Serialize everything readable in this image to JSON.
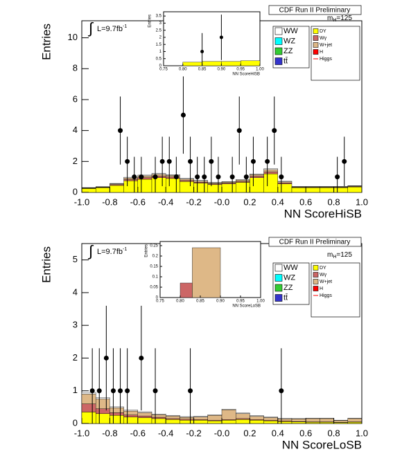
{
  "chart_data": [
    {
      "type": "histogram",
      "title": "CDF Run II Preliminary",
      "lumi_prefix": "∫",
      "lumi": "L=9.7fb",
      "lumi_sup": "-1",
      "mass_label": {
        "main": "m",
        "sub": "H",
        "rest": "=125"
      },
      "xlabel": "NN ScoreHiSB",
      "ylabel": "Entries",
      "xlim": [
        -1,
        1
      ],
      "ylim": [
        0,
        11.1
      ],
      "xticks": [
        {
          "value": -1,
          "label": "-1.0"
        },
        -0.8,
        -0.6,
        -0.4,
        -0.2,
        {
          "value": 0,
          "label": "-0.0"
        },
        0.2,
        0.4,
        0.6,
        0.8,
        {
          "value": 1,
          "label": "1.0"
        }
      ],
      "yticks": [
        0,
        2,
        4,
        6,
        8,
        10
      ],
      "bins": [
        -1,
        -0.9,
        -0.8,
        -0.7,
        -0.6,
        -0.5,
        -0.4,
        -0.3,
        -0.2,
        -0.1,
        0,
        0.1,
        0.2,
        0.3,
        0.4,
        0.5,
        0.6,
        0.7,
        0.8,
        0.9,
        1
      ],
      "series": [
        {
          "name": "DY",
          "color": "#ffff00",
          "values": [
            0.25,
            0.3,
            0.45,
            0.75,
            0.85,
            0.95,
            0.9,
            0.7,
            0.6,
            0.5,
            0.55,
            0.65,
            0.95,
            1.2,
            0.55,
            0.3,
            0.3,
            0.3,
            0.3,
            0.35
          ]
        },
        {
          "name": "Wγ",
          "color": "#cc6666",
          "values": [
            0.02,
            0.03,
            0.05,
            0.08,
            0.1,
            0.1,
            0.1,
            0.08,
            0.06,
            0.05,
            0.05,
            0.06,
            0.1,
            0.12,
            0.06,
            0.03,
            0.03,
            0.03,
            0.03,
            0.03
          ]
        },
        {
          "name": "W+jet",
          "color": "#deb887",
          "values": [
            0.02,
            0.02,
            0.05,
            0.1,
            0.12,
            0.12,
            0.1,
            0.08,
            0.07,
            0.06,
            0.07,
            0.08,
            0.1,
            0.15,
            0.07,
            0.03,
            0.03,
            0.03,
            0.03,
            0.03
          ]
        },
        {
          "name": "H",
          "color": "#ff0000"
        },
        {
          "name": "Higgs",
          "color": "#ff0000"
        },
        {
          "name": "WW",
          "color": "#ffffff",
          "values": [
            0.02,
            0.02,
            0.03,
            0.05,
            0.05,
            0.05,
            0.05,
            0.04,
            0.04,
            0.03,
            0.03,
            0.04,
            0.05,
            0.06,
            0.04,
            0.02,
            0.02,
            0.02,
            0.02,
            0.02
          ]
        },
        {
          "name": "WZ",
          "color": "#00ffff"
        },
        {
          "name": "ZZ",
          "color": "#33cc33"
        },
        {
          "name": "tt̄",
          "color": "#3333cc"
        }
      ],
      "data_points": {
        "x": [
          -0.725,
          -0.675,
          -0.625,
          -0.575,
          -0.475,
          -0.425,
          -0.375,
          -0.325,
          -0.275,
          -0.225,
          -0.175,
          -0.125,
          -0.075,
          -0.025,
          0.075,
          0.125,
          0.175,
          0.225,
          0.325,
          0.375,
          0.425,
          0.825,
          0.875
        ],
        "values": [
          4,
          2,
          1,
          1,
          1,
          2,
          2,
          1,
          5,
          2,
          1,
          1,
          2,
          1,
          1,
          4,
          1,
          2,
          2,
          4,
          1,
          1,
          2
        ],
        "errors": [
          2.2,
          1.6,
          1.3,
          1.3,
          1.3,
          1.6,
          1.6,
          1.3,
          2.5,
          1.6,
          1.3,
          1.3,
          1.6,
          1.3,
          1.3,
          2.2,
          1.3,
          1.6,
          1.6,
          2.2,
          1.3,
          1.3,
          1.6
        ]
      },
      "inset": {
        "xlabel": "NN ScoreHiSB",
        "ylabel": "Entries",
        "xlim": [
          0.75,
          1
        ],
        "ylim": [
          0,
          3.8
        ],
        "xticks": [
          0.75,
          {
            "value": 0.8,
            "label": "0.80"
          },
          0.85,
          {
            "value": 0.9,
            "label": "0.90"
          },
          0.95,
          {
            "value": 1,
            "label": "1.00"
          }
        ],
        "yticks": [
          0,
          0.5,
          1,
          1.5,
          2,
          2.5,
          3,
          3.5
        ],
        "bins": [
          0.75,
          0.8,
          0.85,
          0.9,
          0.95,
          1
        ],
        "series": [
          {
            "name": "DY",
            "color": "#ffff00",
            "values": [
              0,
              0.25,
              0.3,
              0.3,
              0.35
            ]
          }
        ],
        "data_points": {
          "x": [
            0.85,
            0.9
          ],
          "values": [
            1,
            2
          ],
          "errors": [
            1.3,
            1.6
          ]
        }
      }
    },
    {
      "type": "histogram",
      "title": "CDF Run II Preliminary",
      "lumi_prefix": "∫",
      "lumi": "L=9.7fb",
      "lumi_sup": "-1",
      "mass_label": {
        "main": "m",
        "sub": "H",
        "rest": "=125"
      },
      "xlabel": "NN ScoreLoSB",
      "ylabel": "Entries",
      "xlim": [
        -1,
        1
      ],
      "ylim": [
        0,
        5.5
      ],
      "xticks": [
        {
          "value": -1,
          "label": "-1.0"
        },
        -0.8,
        -0.6,
        -0.4,
        -0.2,
        {
          "value": 0,
          "label": "-0.0"
        },
        0.2,
        0.4,
        0.6,
        0.8,
        {
          "value": 1,
          "label": "1.0"
        }
      ],
      "yticks": [
        0,
        1,
        2,
        3,
        4,
        5
      ],
      "bins": [
        -1,
        -0.9,
        -0.8,
        -0.7,
        -0.6,
        -0.5,
        -0.4,
        -0.3,
        -0.2,
        -0.1,
        0,
        0.1,
        0.2,
        0.3,
        0.4,
        0.5,
        0.6,
        0.7,
        0.8,
        0.9,
        1
      ],
      "series": [
        {
          "name": "DY",
          "color": "#ffff00",
          "values": [
            0.35,
            0.3,
            0.25,
            0.2,
            0.18,
            0.15,
            0.12,
            0.1,
            0.1,
            0.08,
            0.1,
            0.12,
            0.1,
            0.08,
            0.06,
            0.05,
            0.04,
            0.04,
            0.03,
            0.04
          ]
        },
        {
          "name": "Wγ",
          "color": "#cc6666",
          "values": [
            0.25,
            0.15,
            0.08,
            0.06,
            0.05,
            0.04,
            0.03,
            0.03,
            0.02,
            0.02,
            0.02,
            0.03,
            0.02,
            0.02,
            0.02,
            0.01,
            0.01,
            0.01,
            0.01,
            0.01
          ]
        },
        {
          "name": "W+jet",
          "color": "#deb887",
          "values": [
            0.3,
            0.3,
            0.15,
            0.12,
            0.1,
            0.08,
            0.08,
            0.06,
            0.08,
            0.15,
            0.3,
            0.15,
            0.1,
            0.08,
            0.06,
            0.08,
            0.1,
            0.1,
            0.05,
            0.1
          ]
        },
        {
          "name": "H",
          "color": "#ff0000"
        },
        {
          "name": "Higgs",
          "color": "#ff0000"
        },
        {
          "name": "WW",
          "color": "#ffffff",
          "values": [
            0.05,
            0.04,
            0.03,
            0.03,
            0.03,
            0.02,
            0.02,
            0.02,
            0.02,
            0.02,
            0.02,
            0.02,
            0.02,
            0.02,
            0.02,
            0.01,
            0.01,
            0.01,
            0.01,
            0.01
          ]
        },
        {
          "name": "WZ",
          "color": "#00ffff"
        },
        {
          "name": "ZZ",
          "color": "#33cc33"
        },
        {
          "name": "tt̄",
          "color": "#3333cc"
        }
      ],
      "data_points": {
        "x": [
          -0.925,
          -0.875,
          -0.825,
          -0.775,
          -0.725,
          -0.675,
          -0.575,
          -0.475,
          -0.225,
          0.425
        ],
        "values": [
          1,
          1,
          2,
          1,
          1,
          1,
          2,
          1,
          1,
          1
        ],
        "errors": [
          1.3,
          1.3,
          1.6,
          1.3,
          1.3,
          1.3,
          1.6,
          1.3,
          1.3,
          1.3
        ]
      },
      "inset": {
        "xlabel": "NN ScoreLoSB",
        "ylabel": "Entries",
        "xlim": [
          0.75,
          1
        ],
        "ylim": [
          0,
          0.27
        ],
        "xticks": [
          0.75,
          {
            "value": 0.8,
            "label": "0.80"
          },
          0.85,
          {
            "value": 0.9,
            "label": "0.90"
          },
          0.95,
          {
            "value": 1,
            "label": "1.00"
          }
        ],
        "yticks": [
          0,
          0.05,
          0.1,
          0.15,
          0.2,
          0.25
        ],
        "bins": [
          0.75,
          0.8,
          0.83,
          0.9,
          1
        ],
        "series": [
          {
            "name": "Wγ",
            "color": "#cc6666",
            "values": [
              0,
              0.07,
              0,
              0
            ]
          },
          {
            "name": "W+jet",
            "color": "#deb887",
            "values": [
              0,
              0,
              0.24,
              0
            ]
          }
        ],
        "data_points": {
          "x": [],
          "values": [],
          "errors": []
        }
      }
    }
  ]
}
